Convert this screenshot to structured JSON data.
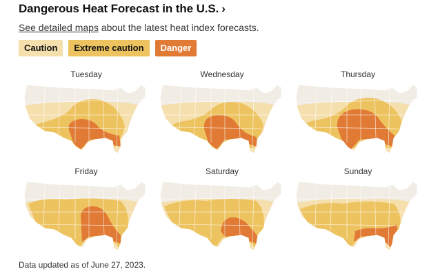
{
  "header": {
    "title": "Dangerous Heat Forecast in the U.S.",
    "chevron": "›"
  },
  "subtitle": {
    "link_text": "See detailed maps",
    "rest": " about the latest heat index forecasts."
  },
  "legend": [
    {
      "label": "Caution",
      "bg": "#f5dfad",
      "fg": "#121212"
    },
    {
      "label": "Extreme caution",
      "bg": "#edc35f",
      "fg": "#121212"
    },
    {
      "label": "Danger",
      "bg": "#e07a34",
      "fg": "#ffffff"
    }
  ],
  "colors": {
    "land": "#f1ece4",
    "caution": "#f5dfad",
    "extreme": "#edc35f",
    "danger": "#e07a34",
    "border": "#ffffff"
  },
  "days": [
    {
      "label": "Tuesday",
      "danger_level": 0.45
    },
    {
      "label": "Wednesday",
      "danger_level": 0.5
    },
    {
      "label": "Thursday",
      "danger_level": 0.6
    },
    {
      "label": "Friday",
      "danger_level": 0.6
    },
    {
      "label": "Saturday",
      "danger_level": 0.55
    },
    {
      "label": "Sunday",
      "danger_level": 0.5
    }
  ],
  "footer": "Data updated as of June 27, 2023."
}
